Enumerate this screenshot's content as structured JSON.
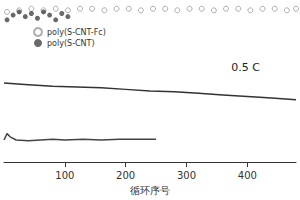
{
  "chart_data": {
    "type": "scatter",
    "x_label": "循环序号",
    "annotations": [
      "0.5 C"
    ],
    "xlim": [
      0,
      480
    ],
    "xticks": [
      100,
      200,
      300,
      400
    ],
    "ylim": [
      0,
      100
    ],
    "tick_labels": "x",
    "grid": false,
    "legend": "upper left",
    "series": [
      {
        "name": "poly(S-CNT-Fc)",
        "type": "scatter",
        "marker": "open_circle",
        "color": "#999999",
        "x": [
          5,
          25,
          45,
          65,
          85,
          105,
          125,
          145,
          165,
          185,
          205,
          225,
          245,
          265,
          285,
          305,
          325,
          345,
          365,
          385,
          405,
          425,
          445,
          465,
          480
        ],
        "values": [
          95,
          96,
          97,
          96,
          97,
          96,
          97,
          97,
          96,
          97,
          97,
          96,
          97,
          97,
          96,
          97,
          97,
          96,
          97,
          97,
          96,
          97,
          97,
          96,
          97
        ]
      },
      {
        "name": "poly(S-CNT)",
        "type": "scatter",
        "marker": "circle",
        "color": "#444444",
        "x": [
          5,
          15,
          25,
          35,
          45,
          55,
          65,
          75,
          85,
          95,
          105
        ],
        "values": [
          90,
          93,
          95,
          92,
          94,
          91,
          95,
          93,
          90,
          94,
          92
        ]
      },
      {
        "name": "poly(S-CNT-Fc)",
        "type": "line",
        "color": "#333333",
        "x": [
          0,
          40,
          80,
          120,
          160,
          200,
          240,
          280,
          320,
          360,
          400,
          440,
          480
        ],
        "values": [
          50,
          49,
          48,
          47.5,
          47,
          46,
          45,
          44.5,
          43.5,
          42.5,
          41.5,
          40.5,
          39.5
        ]
      },
      {
        "name": "poly(S-CNT)",
        "type": "line",
        "color": "#444444",
        "x": [
          0,
          5,
          10,
          20,
          40,
          60,
          80,
          100,
          130,
          160,
          190,
          220,
          250
        ],
        "values": [
          14,
          18,
          16,
          14,
          13.5,
          14,
          14.5,
          14,
          14.5,
          14,
          14.5,
          14.5,
          14.5
        ]
      }
    ]
  }
}
